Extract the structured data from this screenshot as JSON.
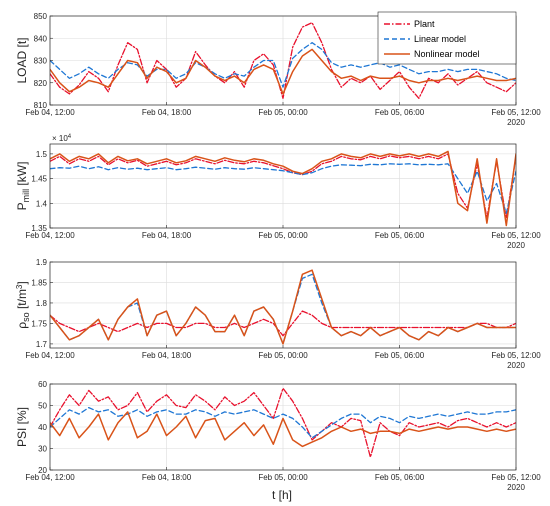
{
  "chart_data": {
    "type": "line",
    "xlabel": "t [h]",
    "x_tick_labels": [
      "Feb 04, 12:00",
      "Feb 04, 18:00",
      "Feb 05, 00:00",
      "Feb 05, 06:00",
      "Feb 05, 12:00"
    ],
    "x_year_label": "2020",
    "x_range_hours": [
      0,
      24
    ],
    "colors": {
      "plant": "#e8112d",
      "linear": "#1f77d4",
      "nonlinear": "#d95319"
    },
    "legend": {
      "placement": "top-right of first panel",
      "entries": [
        "Plant",
        "Linear model",
        "Nonlinear model"
      ]
    },
    "panels": [
      {
        "id": "load",
        "ylabel": "LOAD [t]",
        "ylim": [
          810,
          850
        ],
        "yticks": [
          810,
          820,
          830,
          840,
          850
        ],
        "exponent_label": "",
        "x": [
          0,
          0.5,
          1,
          1.5,
          2,
          2.5,
          3,
          3.5,
          4,
          4.5,
          5,
          5.5,
          6,
          6.5,
          7,
          7.5,
          8,
          8.5,
          9,
          9.5,
          10,
          10.5,
          11,
          11.5,
          12,
          12.5,
          13,
          13.5,
          14,
          14.5,
          15,
          15.5,
          16,
          16.5,
          17,
          17.5,
          18,
          18.5,
          19,
          19.5,
          20,
          20.5,
          21,
          21.5,
          22,
          22.5,
          23,
          23.5,
          24
        ],
        "series": [
          {
            "key": "plant",
            "values": [
              824,
              818,
              815,
              819,
              825,
              822,
              816,
              828,
              838,
              835,
              820,
              830,
              826,
              818,
              822,
              834,
              828,
              823,
              820,
              825,
              818,
              830,
              833,
              828,
              813,
              836,
              845,
              847,
              838,
              826,
              818,
              822,
              820,
              823,
              817,
              821,
              825,
              818,
              813,
              822,
              820,
              824,
              819,
              822,
              825,
              820,
              818,
              816,
              820
            ]
          },
          {
            "key": "linear",
            "values": [
              830,
              826,
              822,
              824,
              827,
              824,
              822,
              826,
              829,
              828,
              823,
              826,
              826,
              822,
              824,
              829,
              827,
              824,
              822,
              824,
              823,
              827,
              830,
              830,
              818,
              831,
              835,
              838,
              835,
              829,
              827,
              828,
              827,
              828,
              829,
              827,
              828,
              826,
              824,
              825,
              825,
              826,
              825,
              826,
              826,
              825,
              824,
              822,
              821
            ]
          },
          {
            "key": "nonlinear",
            "values": [
              826,
              820,
              816,
              818,
              821,
              820,
              818,
              824,
              830,
              829,
              822,
              827,
              825,
              820,
              822,
              830,
              827,
              823,
              821,
              823,
              820,
              826,
              828,
              826,
              815,
              825,
              832,
              835,
              830,
              825,
              822,
              823,
              821,
              823,
              822,
              822,
              823,
              821,
              820,
              821,
              821,
              822,
              821,
              822,
              823,
              822,
              821,
              821,
              822
            ]
          }
        ]
      },
      {
        "id": "pmill",
        "ylabel": "P mill [kW]",
        "ylim": [
          13500,
          15200
        ],
        "yticks": [
          13500,
          14000,
          14500,
          15000
        ],
        "ytick_labels": [
          "1.35",
          "1.4",
          "1.45",
          "1.5"
        ],
        "exponent_label": "× 10",
        "exponent_value": "4",
        "x": [
          0,
          0.5,
          1,
          1.5,
          2,
          2.5,
          3,
          3.5,
          4,
          4.5,
          5,
          5.5,
          6,
          6.5,
          7,
          7.5,
          8,
          8.5,
          9,
          9.5,
          10,
          10.5,
          11,
          11.5,
          12,
          12.5,
          13,
          13.5,
          14,
          14.5,
          15,
          15.5,
          16,
          16.5,
          17,
          17.5,
          18,
          18.5,
          19,
          19.5,
          20,
          20.5,
          21,
          21.5,
          22,
          22.5,
          23,
          23.5,
          24
        ],
        "series": [
          {
            "key": "plant",
            "values": [
              14850,
              14950,
              14800,
              14900,
              14850,
              14950,
              14780,
              14900,
              14820,
              14870,
              14750,
              14800,
              14850,
              14780,
              14820,
              14900,
              14850,
              14800,
              14870,
              14820,
              14800,
              14850,
              14820,
              14760,
              14700,
              14620,
              14580,
              14650,
              14800,
              14850,
              14950,
              14900,
              14880,
              14950,
              14900,
              14960,
              14920,
              14950,
              14900,
              14950,
              14900,
              15000,
              14200,
              13900,
              14800,
              13700,
              14850,
              13700,
              14950
            ]
          },
          {
            "key": "linear",
            "values": [
              14700,
              14720,
              14710,
              14750,
              14700,
              14740,
              14680,
              14720,
              14690,
              14710,
              14680,
              14700,
              14720,
              14680,
              14700,
              14730,
              14710,
              14690,
              14720,
              14700,
              14690,
              14720,
              14700,
              14680,
              14660,
              14620,
              14580,
              14620,
              14700,
              14750,
              14780,
              14770,
              14760,
              14790,
              14780,
              14800,
              14790,
              14800,
              14780,
              14790,
              14780,
              14800,
              14500,
              14200,
              14650,
              14050,
              14400,
              13800,
              14650
            ]
          },
          {
            "key": "nonlinear",
            "values": [
              14900,
              15000,
              14850,
              14950,
              14900,
              15000,
              14820,
              14950,
              14860,
              14900,
              14800,
              14850,
              14900,
              14820,
              14860,
              14950,
              14900,
              14850,
              14920,
              14870,
              14840,
              14900,
              14870,
              14800,
              14750,
              14650,
              14600,
              14700,
              14850,
              14900,
              15000,
              14950,
              14920,
              15000,
              14950,
              15000,
              14960,
              15000,
              14950,
              15000,
              14950,
              15050,
              14000,
              13850,
              14900,
              13600,
              14900,
              13550,
              15000
            ]
          }
        ]
      },
      {
        "id": "rho",
        "ylabel": "ρ so [t/m 3 ]",
        "ylim": [
          1.69,
          1.9
        ],
        "yticks": [
          1.7,
          1.75,
          1.8,
          1.85,
          1.9
        ],
        "exponent_label": "",
        "x": [
          0,
          0.5,
          1,
          1.5,
          2,
          2.5,
          3,
          3.5,
          4,
          4.5,
          5,
          5.5,
          6,
          6.5,
          7,
          7.5,
          8,
          8.5,
          9,
          9.5,
          10,
          10.5,
          11,
          11.5,
          12,
          12.5,
          13,
          13.5,
          14,
          14.5,
          15,
          15.5,
          16,
          16.5,
          17,
          17.5,
          18,
          18.5,
          19,
          19.5,
          20,
          20.5,
          21,
          21.5,
          22,
          22.5,
          23,
          23.5,
          24
        ],
        "series": [
          {
            "key": "plant",
            "values": [
              1.77,
              1.75,
              1.74,
              1.73,
              1.74,
              1.75,
              1.74,
              1.73,
              1.74,
              1.75,
              1.74,
              1.75,
              1.75,
              1.74,
              1.74,
              1.75,
              1.75,
              1.74,
              1.74,
              1.75,
              1.74,
              1.75,
              1.76,
              1.75,
              1.72,
              1.75,
              1.78,
              1.77,
              1.75,
              1.74,
              1.74,
              1.74,
              1.74,
              1.74,
              1.74,
              1.74,
              1.74,
              1.74,
              1.74,
              1.74,
              1.74,
              1.74,
              1.74,
              1.74,
              1.75,
              1.75,
              1.74,
              1.74,
              1.75
            ]
          },
          {
            "key": "linear",
            "values": [
              1.77,
              1.74,
              1.71,
              1.72,
              1.74,
              1.76,
              1.71,
              1.76,
              1.79,
              1.8,
              1.72,
              1.77,
              1.78,
              1.72,
              1.75,
              1.79,
              1.77,
              1.73,
              1.73,
              1.77,
              1.72,
              1.78,
              1.79,
              1.76,
              1.7,
              1.78,
              1.86,
              1.87,
              1.8,
              1.74,
              1.72,
              1.73,
              1.72,
              1.74,
              1.72,
              1.73,
              1.74,
              1.72,
              1.71,
              1.73,
              1.72,
              1.74,
              1.73,
              1.74,
              1.75,
              1.74,
              1.74,
              1.74,
              1.74
            ]
          },
          {
            "key": "nonlinear",
            "values": [
              1.77,
              1.74,
              1.71,
              1.72,
              1.74,
              1.76,
              1.71,
              1.76,
              1.79,
              1.81,
              1.72,
              1.77,
              1.78,
              1.72,
              1.75,
              1.79,
              1.77,
              1.73,
              1.73,
              1.77,
              1.72,
              1.78,
              1.79,
              1.76,
              1.7,
              1.78,
              1.87,
              1.88,
              1.81,
              1.74,
              1.72,
              1.73,
              1.72,
              1.74,
              1.72,
              1.73,
              1.74,
              1.72,
              1.71,
              1.73,
              1.72,
              1.74,
              1.73,
              1.74,
              1.75,
              1.74,
              1.74,
              1.74,
              1.74
            ]
          }
        ]
      },
      {
        "id": "psi",
        "ylabel": "PSI [%]",
        "ylim": [
          20,
          60
        ],
        "yticks": [
          20,
          30,
          40,
          50,
          60
        ],
        "exponent_label": "",
        "x": [
          0,
          0.5,
          1,
          1.5,
          2,
          2.5,
          3,
          3.5,
          4,
          4.5,
          5,
          5.5,
          6,
          6.5,
          7,
          7.5,
          8,
          8.5,
          9,
          9.5,
          10,
          10.5,
          11,
          11.5,
          12,
          12.5,
          13,
          13.5,
          14,
          14.5,
          15,
          15.5,
          16,
          16.5,
          17,
          17.5,
          18,
          18.5,
          19,
          19.5,
          20,
          20.5,
          21,
          21.5,
          22,
          22.5,
          23,
          23.5,
          24
        ],
        "series": [
          {
            "key": "plant",
            "values": [
              40,
              48,
              55,
              50,
              57,
              52,
              54,
              48,
              50,
              56,
              47,
              52,
              55,
              50,
              49,
              55,
              52,
              48,
              54,
              50,
              52,
              56,
              50,
              44,
              58,
              52,
              44,
              34,
              38,
              42,
              40,
              44,
              43,
              26,
              42,
              38,
              36,
              42,
              40,
              41,
              42,
              40,
              43,
              44,
              42,
              40,
              42,
              40,
              42
            ]
          },
          {
            "key": "linear",
            "values": [
              40,
              44,
              48,
              46,
              49,
              47,
              48,
              45,
              46,
              48,
              45,
              47,
              48,
              46,
              46,
              48,
              47,
              45,
              47,
              46,
              47,
              48,
              46,
              44,
              46,
              44,
              40,
              35,
              38,
              41,
              44,
              46,
              46,
              42,
              45,
              44,
              42,
              45,
              44,
              45,
              46,
              45,
              46,
              47,
              46,
              46,
              47,
              47,
              48
            ]
          },
          {
            "key": "nonlinear",
            "values": [
              42,
              36,
              44,
              35,
              40,
              46,
              34,
              42,
              47,
              35,
              38,
              46,
              36,
              40,
              45,
              35,
              43,
              44,
              34,
              38,
              42,
              36,
              41,
              32,
              44,
              34,
              31,
              33,
              35,
              38,
              40,
              38,
              39,
              37,
              38,
              38,
              37,
              39,
              38,
              39,
              40,
              39,
              40,
              40,
              39,
              38,
              39,
              38,
              39
            ]
          }
        ]
      }
    ]
  }
}
